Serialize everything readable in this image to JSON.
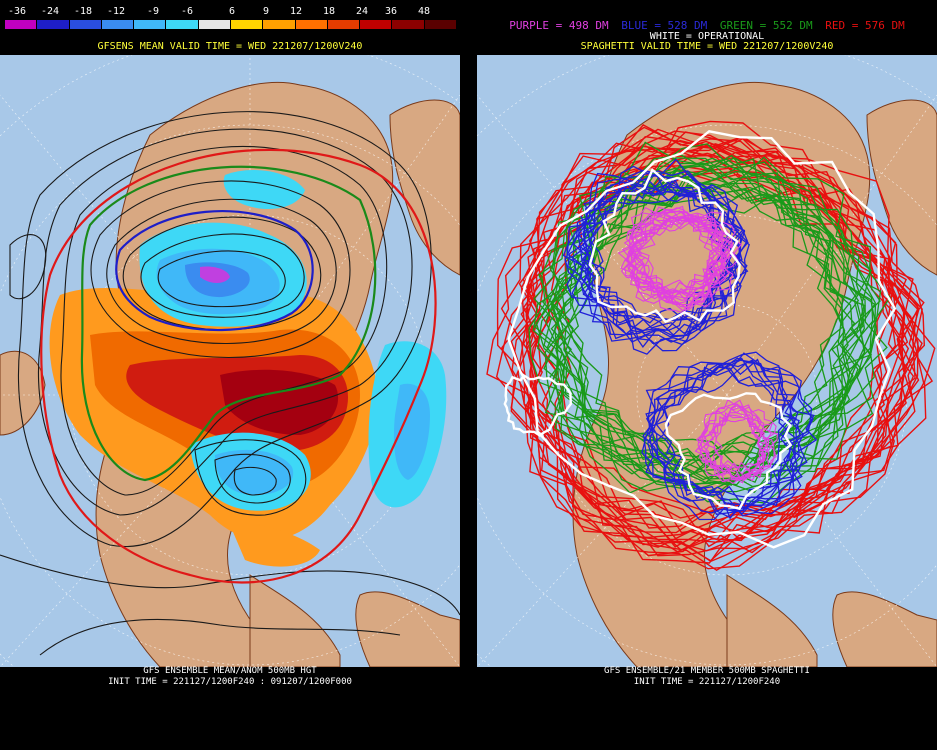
{
  "left_panel": {
    "legend_labels": [
      "-36",
      "-24",
      "-18",
      "-12",
      "-9",
      "-6",
      "6",
      "9",
      "12",
      "18",
      "24",
      "36",
      "48"
    ],
    "legend_colors": [
      "#c000c0",
      "#1e1ec8",
      "#2a4ee0",
      "#3a8cf0",
      "#40b8f8",
      "#3ed8f6",
      "#e6e6e6",
      "#ffd400",
      "#ffa000",
      "#ff7000",
      "#e43c00",
      "#c00000",
      "#8c0000",
      "#5a0000"
    ],
    "title": "GFSENS MEAN VALID TIME = WED 221207/1200V240",
    "footer_line1": "GFS ENSEMBLE MEAN/ANOM 500MB HGT",
    "footer_line2": "INIT TIME = 221127/1200F240 : 091207/1200F000"
  },
  "right_panel": {
    "legend": [
      {
        "text": "PURPLE = 498 DM",
        "color": "#e040e0"
      },
      {
        "text": "BLUE = 528 DM",
        "color": "#2a2ad8"
      },
      {
        "text": "GREEN = 552 DM",
        "color": "#1a9a1a"
      },
      {
        "text": "RED = 576 DM",
        "color": "#e81010"
      }
    ],
    "white_label": "WHITE = OPERATIONAL",
    "title": "SPAGHETTI VALID TIME = WED 221207/1200V240",
    "footer_line1": "GFS ENSEMBLE/21 MEMBER 500MB SPAGHETTI",
    "footer_line2": "INIT TIME = 221127/1200F240"
  }
}
